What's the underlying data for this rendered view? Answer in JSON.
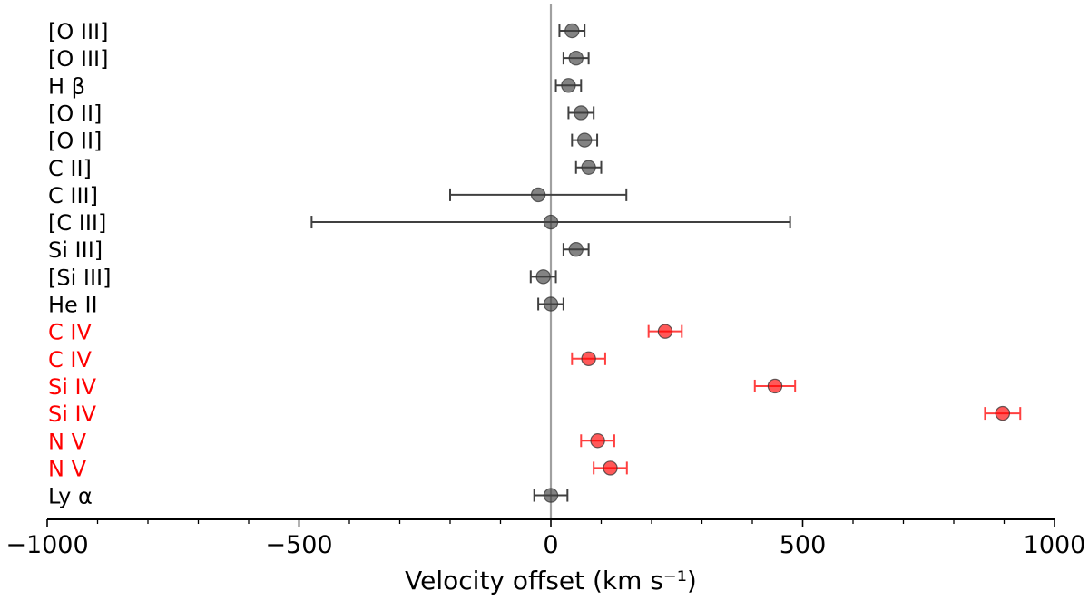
{
  "chart_data": {
    "type": "scatter",
    "title": "",
    "xlabel": "Velocity offset (km s⁻¹)",
    "ylabel": "",
    "xlim": [
      -1000,
      1000
    ],
    "xticks": [
      {
        "value": -1000,
        "label": "−1000"
      },
      {
        "value": -500,
        "label": "−500"
      },
      {
        "value": 0,
        "label": "0"
      },
      {
        "value": 500,
        "label": "500"
      },
      {
        "value": 1000,
        "label": "1000"
      }
    ],
    "minor_tick_step": 100,
    "reference_line": 0,
    "grid": false,
    "colors": {
      "default": "#404040",
      "highlight": "#ff0000",
      "errorbar_default": "#404040",
      "errorbar_highlight": "#ff4040",
      "zero_line": "#a0a0a0"
    },
    "points": [
      {
        "label": "[O III]",
        "value": 42,
        "err": 25,
        "highlight": false
      },
      {
        "label": "[O III]",
        "value": 50,
        "err": 25,
        "highlight": false
      },
      {
        "label": "H β",
        "value": 35,
        "err": 25,
        "highlight": false
      },
      {
        "label": "[O II]",
        "value": 60,
        "err": 25,
        "highlight": false
      },
      {
        "label": "[O II]",
        "value": 67,
        "err": 25,
        "highlight": false
      },
      {
        "label": "C II]",
        "value": 75,
        "err": 25,
        "highlight": false
      },
      {
        "label": "C III]",
        "value": -25,
        "err": 175,
        "highlight": false
      },
      {
        "label": "[C III]",
        "value": 0,
        "err": 475,
        "highlight": false
      },
      {
        "label": "Si III]",
        "value": 50,
        "err": 25,
        "highlight": false
      },
      {
        "label": "[Si III]",
        "value": -15,
        "err": 25,
        "highlight": false
      },
      {
        "label": "He II",
        "value": 0,
        "err": 25,
        "highlight": false
      },
      {
        "label": "C IV",
        "value": 227,
        "err": 33,
        "highlight": true
      },
      {
        "label": "C IV",
        "value": 75,
        "err": 33,
        "highlight": true
      },
      {
        "label": "Si IV",
        "value": 445,
        "err": 40,
        "highlight": true
      },
      {
        "label": "Si IV",
        "value": 897,
        "err": 35,
        "highlight": true
      },
      {
        "label": "N V",
        "value": 93,
        "err": 33,
        "highlight": true
      },
      {
        "label": "N V",
        "value": 118,
        "err": 33,
        "highlight": true
      },
      {
        "label": "Ly α",
        "value": 0,
        "err": 33,
        "highlight": false
      }
    ]
  }
}
